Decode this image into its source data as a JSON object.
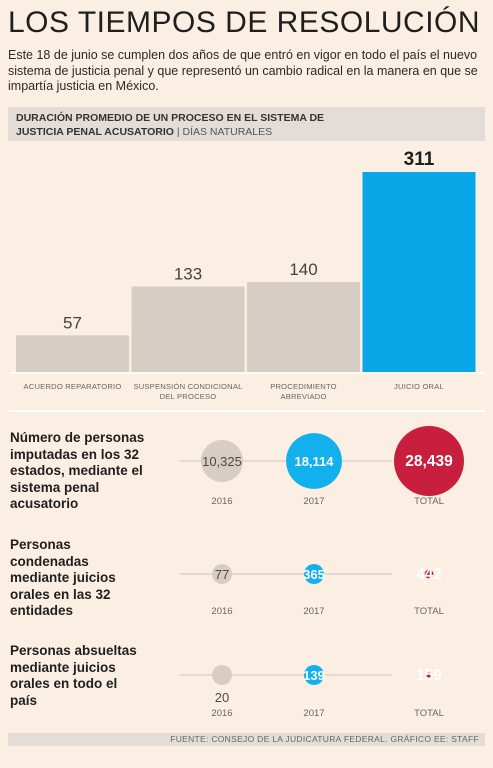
{
  "title": "LOS TIEMPOS DE RESOLUCIÓN",
  "intro": "Este 18 de junio se cumplen dos años de que entró en vigor en todo el país el nuevo sistema de justicia penal y que representó un cambio radical en la manera en que se impartía justicia en México.",
  "chart_header": {
    "line1": "DURACIÓN PROMEDIO DE UN PROCESO EN EL SISTEMA DE",
    "line2_bold": "JUSTICIA PENAL ACUSATORIO",
    "separator": "|",
    "unit": "DÍAS NATURALES"
  },
  "chart_data": [
    {
      "type": "bar",
      "title": "DURACIÓN PROMEDIO DE UN PROCESO EN EL SISTEMA DE JUSTICIA PENAL ACUSATORIO",
      "ylabel": "DÍAS NATURALES",
      "categories": [
        [
          "ACUERDO REPARATORIO"
        ],
        [
          "SUSPENSIÓN CONDICIONAL",
          "DEL PROCESO"
        ],
        [
          "PROCEDIMIENTO",
          "ABREVIADO"
        ],
        [
          "JUICIO ORAL"
        ]
      ],
      "values": [
        57,
        133,
        140,
        311
      ],
      "value_labels": [
        "57",
        "133",
        "140",
        "311"
      ],
      "colors": [
        "#d8cdc4",
        "#d8cdc4",
        "#d8cdc4",
        "#0aa7e8"
      ],
      "highlight_index": 3,
      "ylim": [
        0,
        311
      ],
      "grid": false
    },
    {
      "type": "scatter",
      "encoding": "bubble",
      "columns": [
        "2016",
        "2017",
        "TOTAL"
      ],
      "column_colors": [
        "#d8cdc4",
        "#12b0ec",
        "#c81f3e"
      ],
      "rows": [
        {
          "label": "Número de personas imputadas en los 32 estados, mediante el sistema penal acusatorio",
          "values": [
            10325,
            18114,
            28439
          ],
          "value_labels": [
            "10,325",
            "18,114",
            "28,439"
          ]
        },
        {
          "label": "Personas condenadas mediante juicios orales en las 32 entidades",
          "values": [
            77,
            365,
            442
          ],
          "value_labels": [
            "77",
            "365",
            "442"
          ]
        },
        {
          "label": "Personas absueltas mediante juicios orales en todo el país",
          "values": [
            20,
            139,
            159
          ],
          "value_labels": [
            "20",
            "139",
            "159"
          ]
        }
      ]
    }
  ],
  "source": "FUENTE: CONSEJO DE LA JUDICATURA FEDERAL. GRÁFICO EE: STAFF"
}
